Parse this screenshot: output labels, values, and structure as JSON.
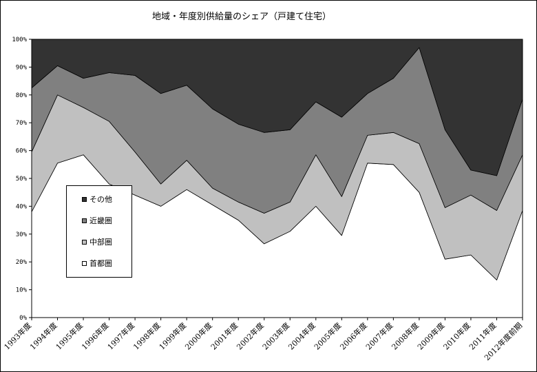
{
  "chart_data": {
    "type": "area",
    "stacked": true,
    "percent": true,
    "title": "地域・年度別供給量のシェア（戸建て住宅）",
    "categories": [
      "1993年度",
      "1994年度",
      "1995年度",
      "1996年度",
      "1997年度",
      "1998年度",
      "1999年度",
      "2000年度",
      "2001年度",
      "2002年度",
      "2003年度",
      "2004年度",
      "2005年度",
      "2006年度",
      "2007年度",
      "2008年度",
      "2009年度",
      "2010年度",
      "2011年度",
      "2012年度前期"
    ],
    "y_ticks": [
      "0%",
      "10%",
      "20%",
      "30%",
      "40%",
      "50%",
      "60%",
      "70%",
      "80%",
      "90%",
      "100%"
    ],
    "ylim": [
      0,
      100
    ],
    "grid": false,
    "legend_position": "left",
    "series": [
      {
        "name": "首都圏",
        "color": "#ffffff",
        "values": [
          38,
          55.5,
          58.5,
          48,
          44,
          40,
          46,
          40.5,
          35,
          26.5,
          31,
          40,
          29.5,
          55.5,
          55,
          45,
          21,
          22.5,
          13.5,
          38.5
        ]
      },
      {
        "name": "中部圏",
        "color": "#c0c0c0",
        "values": [
          21.5,
          24.5,
          17,
          22.5,
          15.5,
          8,
          10.5,
          6,
          6.5,
          11,
          10.5,
          18.5,
          14,
          10,
          11.5,
          17.5,
          18.5,
          21.5,
          25,
          20
        ]
      },
      {
        "name": "近畿圏",
        "color": "#808080",
        "values": [
          23,
          10.5,
          10.5,
          17.5,
          27.5,
          32.5,
          27,
          28.5,
          28,
          29,
          26,
          19,
          28.5,
          15,
          19.5,
          34.5,
          28,
          9,
          12.5,
          20
        ]
      },
      {
        "name": "その他",
        "color": "#333333",
        "values": [
          17.5,
          9.5,
          14,
          12,
          13,
          19.5,
          16.5,
          25,
          30.5,
          33.5,
          32.5,
          22.5,
          28,
          19.5,
          14,
          3,
          32.5,
          47,
          49,
          21.5
        ]
      }
    ]
  }
}
